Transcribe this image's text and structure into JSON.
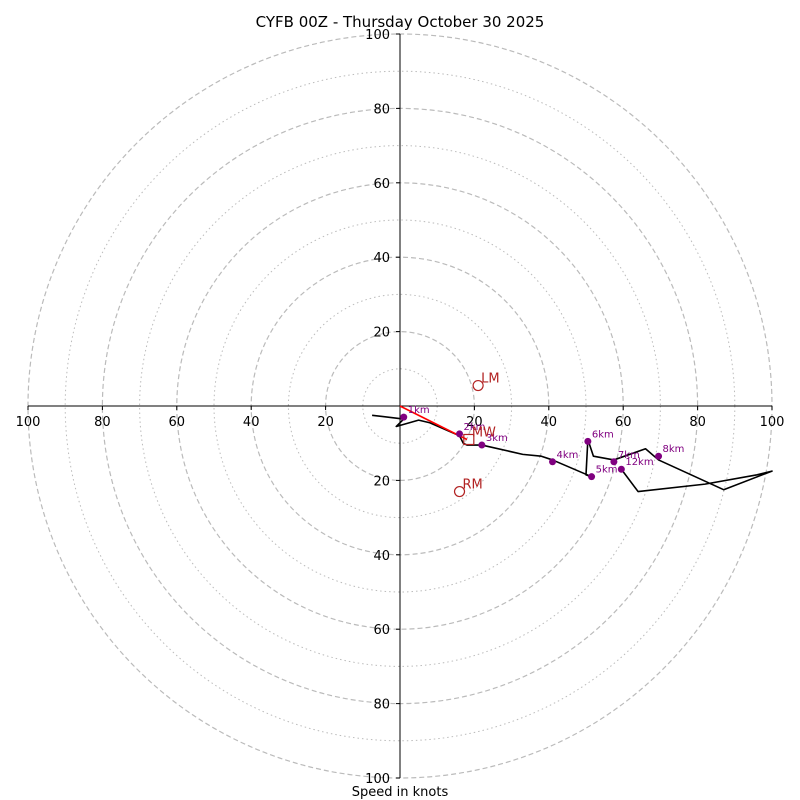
{
  "chart_data": {
    "type": "hodograph",
    "title": "CYFB 00Z - Thursday October 30 2025",
    "xlabel": "Speed in knots",
    "range_kt": 100,
    "ring_major": [
      20,
      40,
      60,
      80,
      100
    ],
    "ring_minor": [
      10,
      30,
      50,
      70,
      90
    ],
    "x_ticks": [
      100,
      80,
      60,
      40,
      20,
      20,
      40,
      60,
      80,
      100
    ],
    "x_tick_values": [
      -100,
      -80,
      -60,
      -40,
      -20,
      20,
      40,
      60,
      80,
      100
    ],
    "y_ticks": [
      100,
      80,
      60,
      40,
      20,
      20,
      40,
      60,
      80,
      100
    ],
    "y_tick_values": [
      100,
      80,
      60,
      40,
      20,
      -20,
      -40,
      -60,
      -80,
      -100
    ],
    "colors": {
      "profile": "#000000",
      "shear": "#ff0000",
      "points": "#800080",
      "motion": "#b22222",
      "grid": "#bbbbbb"
    },
    "profile": [
      [
        -7.5,
        -2.5
      ],
      [
        1,
        -3.5
      ],
      [
        -1,
        -5.5
      ],
      [
        5,
        -3.8
      ],
      [
        8,
        -4.5
      ],
      [
        16,
        -8
      ],
      [
        17,
        -10
      ],
      [
        18,
        -10.5
      ],
      [
        22,
        -10.5
      ],
      [
        33,
        -13
      ],
      [
        38,
        -13.5
      ],
      [
        41,
        -14.5
      ],
      [
        51.5,
        -19
      ],
      [
        50,
        -18.5
      ],
      [
        50.5,
        -9
      ],
      [
        52,
        -13.5
      ],
      [
        57.5,
        -14.5
      ],
      [
        66,
        -11.5
      ],
      [
        69.5,
        -14.5
      ],
      [
        87,
        -22.5
      ],
      [
        100,
        -17.5
      ],
      [
        96,
        -18.5
      ],
      [
        82,
        -21
      ],
      [
        64,
        -23
      ],
      [
        59.5,
        -17
      ]
    ],
    "height_points": [
      {
        "label": "1km",
        "u": 1,
        "v": -3
      },
      {
        "label": "2km",
        "u": 16,
        "v": -7.5
      },
      {
        "label": "3km",
        "u": 22,
        "v": -10.5
      },
      {
        "label": "4km",
        "u": 41,
        "v": -15
      },
      {
        "label": "5km",
        "u": 51.5,
        "v": -19
      },
      {
        "label": "6km",
        "u": 50.5,
        "v": -9.5
      },
      {
        "label": "7km",
        "u": 57.5,
        "v": -15
      },
      {
        "label": "8km",
        "u": 69.5,
        "v": -13.5
      },
      {
        "label": "12km",
        "u": 59.5,
        "v": -17
      }
    ],
    "shear_vector": {
      "from": [
        0,
        0
      ],
      "to": [
        18,
        -9
      ]
    },
    "storm_motion": [
      {
        "label": "LM",
        "u": 21,
        "v": 5.5,
        "marker": "circle"
      },
      {
        "label": "RM",
        "u": 16,
        "v": -23,
        "marker": "circle"
      },
      {
        "label": "MW",
        "u": 18.5,
        "v": -9,
        "marker": "square"
      }
    ]
  }
}
